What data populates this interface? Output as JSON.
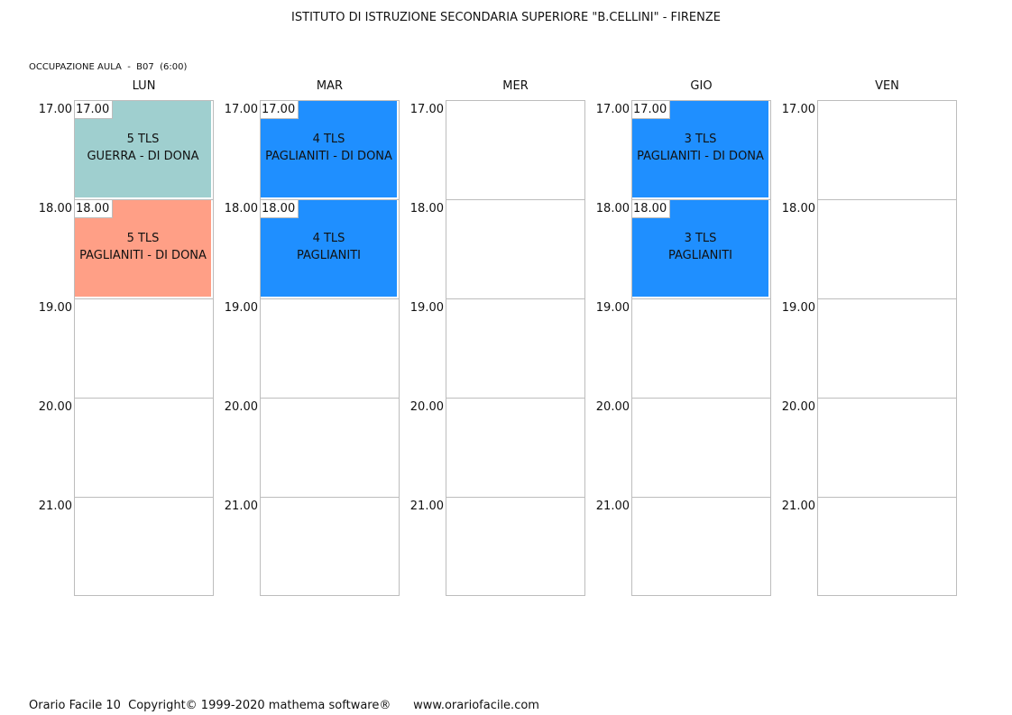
{
  "header": {
    "title": "ISTITUTO DI ISTRUZIONE SECONDARIA SUPERIORE \"B.CELLINI\" - FIRENZE",
    "subtitle": "OCCUPAZIONE AULA  -  B07  (6:00)"
  },
  "times": [
    "17.00",
    "18.00",
    "19.00",
    "20.00",
    "21.00"
  ],
  "days": [
    {
      "name": "LUN"
    },
    {
      "name": "MAR"
    },
    {
      "name": "MER"
    },
    {
      "name": "GIO"
    },
    {
      "name": "VEN"
    }
  ],
  "lessons": [
    {
      "day": 0,
      "slot": 0,
      "time": "17.00",
      "class": "5 TLS",
      "teachers": "GUERRA - DI DONA",
      "color": "#9fcfcf"
    },
    {
      "day": 0,
      "slot": 1,
      "time": "18.00",
      "class": "5 TLS",
      "teachers": "PAGLIANITI - DI DONA",
      "color": "#ff9f86"
    },
    {
      "day": 1,
      "slot": 0,
      "time": "17.00",
      "class": "4 TLS",
      "teachers": "PAGLIANITI - DI DONA",
      "color": "#1f8fff"
    },
    {
      "day": 1,
      "slot": 1,
      "time": "18.00",
      "class": "4 TLS",
      "teachers": "PAGLIANITI",
      "color": "#1f8fff"
    },
    {
      "day": 3,
      "slot": 0,
      "time": "17.00",
      "class": "3 TLS",
      "teachers": "PAGLIANITI - DI DONA",
      "color": "#1f8fff"
    },
    {
      "day": 3,
      "slot": 1,
      "time": "18.00",
      "class": "3 TLS",
      "teachers": "PAGLIANITI",
      "color": "#1f8fff"
    }
  ],
  "footer": {
    "text": "Orario Facile 10  Copyright© 1999-2020 mathema software®      www.orariofacile.com"
  }
}
